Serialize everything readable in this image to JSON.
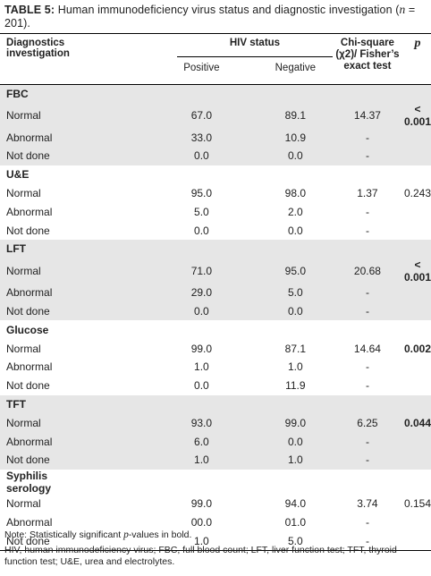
{
  "caption": {
    "label": "TABLE 5:",
    "text": " Human immunodeficiency virus status and diagnostic investigation",
    "n_open": "(",
    "n_var": "n",
    "n_rest": " = 201)."
  },
  "header": {
    "diag": "Diagnostics investigation",
    "hiv_status": "HIV status",
    "positive": "Positive",
    "negative": "Negative",
    "chi": "Chi-square (χ2)/ Fisher’s exact test",
    "p": "p"
  },
  "sections": [
    {
      "title": "FBC",
      "rows": [
        {
          "label": "Normal",
          "pos": "67.0",
          "neg": "89.1",
          "chi": "14.37",
          "p": "< 0.001",
          "p_bold": true
        },
        {
          "label": "Abnormal",
          "pos": "33.0",
          "neg": "10.9",
          "chi": "-",
          "p": ""
        },
        {
          "label": "Not done",
          "pos": "0.0",
          "neg": "0.0",
          "chi": "-",
          "p": ""
        }
      ]
    },
    {
      "title": "U&E",
      "rows": [
        {
          "label": "Normal",
          "pos": "95.0",
          "neg": "98.0",
          "chi": "1.37",
          "p": "0.243",
          "p_bold": false
        },
        {
          "label": "Abnormal",
          "pos": "5.0",
          "neg": "2.0",
          "chi": "-",
          "p": ""
        },
        {
          "label": "Not done",
          "pos": "0.0",
          "neg": "0.0",
          "chi": "-",
          "p": ""
        }
      ]
    },
    {
      "title": "LFT",
      "rows": [
        {
          "label": "Normal",
          "pos": "71.0",
          "neg": "95.0",
          "chi": "20.68",
          "p": "< 0.001",
          "p_bold": true
        },
        {
          "label": "Abnormal",
          "pos": "29.0",
          "neg": "5.0",
          "chi": "-",
          "p": ""
        },
        {
          "label": "Not done",
          "pos": "0.0",
          "neg": "0.0",
          "chi": "-",
          "p": ""
        }
      ]
    },
    {
      "title": "Glucose",
      "rows": [
        {
          "label": "Normal",
          "pos": "99.0",
          "neg": "87.1",
          "chi": "14.64",
          "p": "0.002",
          "p_bold": true
        },
        {
          "label": "Abnormal",
          "pos": "1.0",
          "neg": "1.0",
          "chi": "-",
          "p": ""
        },
        {
          "label": "Not done",
          "pos": "0.0",
          "neg": "11.9",
          "chi": "-",
          "p": ""
        }
      ]
    },
    {
      "title": "TFT",
      "rows": [
        {
          "label": "Normal",
          "pos": "93.0",
          "neg": "99.0",
          "chi": "6.25",
          "p": "0.044",
          "p_bold": true
        },
        {
          "label": "Abnormal",
          "pos": "6.0",
          "neg": "0.0",
          "chi": "-",
          "p": ""
        },
        {
          "label": "Not done",
          "pos": "1.0",
          "neg": "1.0",
          "chi": "-",
          "p": ""
        }
      ]
    },
    {
      "title": "Syphilis serology",
      "rows": [
        {
          "label": "Normal",
          "pos": "99.0",
          "neg": "94.0",
          "chi": "3.74",
          "p": "0.154",
          "p_bold": false
        },
        {
          "label": "Abnormal",
          "pos": "00.0",
          "neg": "01.0",
          "chi": "-",
          "p": ""
        },
        {
          "label": "Not done",
          "pos": "1.0",
          "neg": "5.0",
          "chi": "-",
          "p": ""
        }
      ]
    }
  ],
  "notes": {
    "note_a": "Note: Statistically significant ",
    "note_var": "p",
    "note_b": "-values in bold.",
    "abbrev": "HIV, human immunodeficiency virus; FBC, full blood count; LFT, liver function test; TFT, thyroid function test; U&E, urea and electrolytes."
  },
  "colors": {
    "shade": "#e6e6e6",
    "rule": "#000000",
    "text": "#222222"
  }
}
